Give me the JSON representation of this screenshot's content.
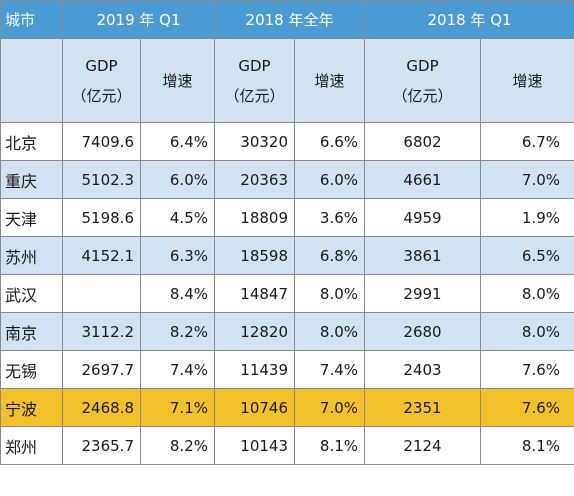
{
  "header": {
    "city": "城市",
    "col_2019q1": "2019 年 Q1",
    "col_2018full": "2018 年全年",
    "col_2018q1": "2018 年 Q1"
  },
  "subheader": {
    "gdp_line1": "GDP",
    "gdp_line2": "（亿元）",
    "growth": "增速"
  },
  "rows": [
    {
      "city": "北京",
      "gdp2019q1": "7409.6",
      "g2019q1": "6.4%",
      "gdp2018": "30320",
      "g2018": "6.6%",
      "gdp2018q1": "6802",
      "g2018q1": "6.7%",
      "style": "plain"
    },
    {
      "city": "重庆",
      "gdp2019q1": "5102.3",
      "g2019q1": "6.0%",
      "gdp2018": "20363",
      "g2018": "6.0%",
      "gdp2018q1": "4661",
      "g2018q1": "7.0%",
      "style": "alt"
    },
    {
      "city": "天津",
      "gdp2019q1": "5198.6",
      "g2019q1": "4.5%",
      "gdp2018": "18809",
      "g2018": "3.6%",
      "gdp2018q1": "4959",
      "g2018q1": "1.9%",
      "style": "plain"
    },
    {
      "city": "苏州",
      "gdp2019q1": "4152.1",
      "g2019q1": "6.3%",
      "gdp2018": "18598",
      "g2018": "6.8%",
      "gdp2018q1": "3861",
      "g2018q1": "6.5%",
      "style": "alt"
    },
    {
      "city": "武汉",
      "gdp2019q1": "",
      "g2019q1": "8.4%",
      "gdp2018": "14847",
      "g2018": "8.0%",
      "gdp2018q1": "2991",
      "g2018q1": "8.0%",
      "style": "plain"
    },
    {
      "city": "南京",
      "gdp2019q1": "3112.2",
      "g2019q1": "8.2%",
      "gdp2018": "12820",
      "g2018": "8.0%",
      "gdp2018q1": "2680",
      "g2018q1": "8.0%",
      "style": "alt"
    },
    {
      "city": "无锡",
      "gdp2019q1": "2697.7",
      "g2019q1": "7.4%",
      "gdp2018": "11439",
      "g2018": "7.4%",
      "gdp2018q1": "2403",
      "g2018q1": "7.6%",
      "style": "plain"
    },
    {
      "city": "宁波",
      "gdp2019q1": "2468.8",
      "g2019q1": "7.1%",
      "gdp2018": "10746",
      "g2018": "7.0%",
      "gdp2018q1": "2351",
      "g2018q1": "7.6%",
      "style": "highlight"
    },
    {
      "city": "郑州",
      "gdp2019q1": "2365.7",
      "g2019q1": "8.2%",
      "gdp2018": "10143",
      "g2018": "8.1%",
      "gdp2018q1": "2124",
      "g2018q1": "8.1%",
      "style": "plain"
    }
  ],
  "colors": {
    "header_bg": "#4a9ad4",
    "alt_row_bg": "#d3e2f2",
    "highlight_bg": "#f3c12a"
  }
}
